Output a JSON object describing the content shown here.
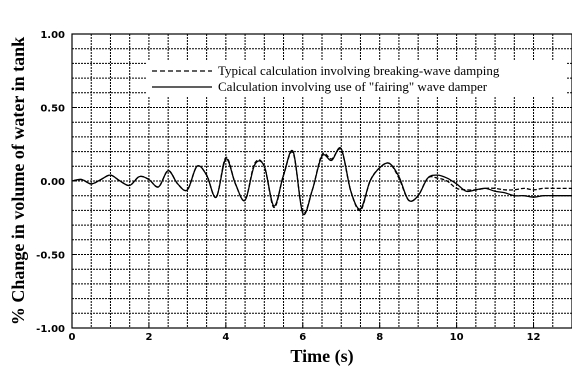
{
  "chart_data": {
    "type": "line",
    "title": "",
    "xlabel": "Time (s)",
    "ylabel": "% Change in volume of water in tank",
    "xlim": [
      0,
      13
    ],
    "ylim": [
      -1.0,
      1.0
    ],
    "x_ticks": [
      0,
      2,
      4,
      6,
      8,
      10,
      12
    ],
    "x_tick_labels": [
      "0",
      "2",
      "4",
      "6",
      "8",
      "10",
      "12"
    ],
    "y_ticks": [
      1.0,
      0.5,
      0.0,
      -0.5,
      -1.0
    ],
    "y_tick_labels": [
      "1.00",
      "0.50",
      "0.00",
      "-0.50",
      "-1.00"
    ],
    "grid": true,
    "legend_position": "top-right",
    "series": [
      {
        "name": "Typical calculation involving breaking-wave damping",
        "style": "dashed",
        "color": "#000000",
        "x": [
          0,
          0.25,
          0.5,
          0.75,
          1.0,
          1.25,
          1.5,
          1.75,
          2.0,
          2.25,
          2.5,
          2.75,
          3.0,
          3.25,
          3.5,
          3.75,
          4.0,
          4.25,
          4.5,
          4.75,
          5.0,
          5.25,
          5.5,
          5.75,
          6.0,
          6.25,
          6.5,
          6.75,
          7.0,
          7.25,
          7.5,
          7.75,
          8.0,
          8.25,
          8.5,
          8.75,
          9.0,
          9.25,
          9.5,
          9.75,
          10.0,
          10.25,
          10.5,
          10.75,
          11.0,
          11.25,
          11.5,
          11.75,
          12.0,
          12.25,
          12.5,
          12.75,
          13.0
        ],
        "y": [
          0.0,
          0.01,
          -0.02,
          0.01,
          0.04,
          0.0,
          -0.03,
          0.03,
          0.01,
          -0.04,
          0.07,
          -0.02,
          -0.06,
          0.1,
          0.04,
          -0.11,
          0.16,
          -0.02,
          -0.13,
          0.12,
          0.1,
          -0.18,
          0.04,
          0.19,
          -0.21,
          -0.06,
          0.18,
          0.15,
          0.21,
          -0.07,
          -0.2,
          0.0,
          0.09,
          0.12,
          0.02,
          -0.13,
          -0.1,
          0.02,
          0.02,
          0.0,
          -0.05,
          -0.06,
          -0.06,
          -0.05,
          -0.05,
          -0.06,
          -0.06,
          -0.05,
          -0.06,
          -0.05,
          -0.05,
          -0.05,
          -0.05
        ]
      },
      {
        "name": "Calculation involving use of \"fairing\" wave damper",
        "style": "solid",
        "color": "#000000",
        "x": [
          0,
          0.25,
          0.5,
          0.75,
          1.0,
          1.25,
          1.5,
          1.75,
          2.0,
          2.25,
          2.5,
          2.75,
          3.0,
          3.25,
          3.5,
          3.75,
          4.0,
          4.25,
          4.5,
          4.75,
          5.0,
          5.25,
          5.5,
          5.75,
          6.0,
          6.25,
          6.5,
          6.75,
          7.0,
          7.25,
          7.5,
          7.75,
          8.0,
          8.25,
          8.5,
          8.75,
          9.0,
          9.25,
          9.5,
          9.75,
          10.0,
          10.25,
          10.5,
          10.75,
          11.0,
          11.25,
          11.5,
          11.75,
          12.0,
          12.25,
          12.5,
          12.75,
          13.0
        ],
        "y": [
          0.0,
          0.01,
          -0.02,
          0.01,
          0.04,
          0.0,
          -0.03,
          0.03,
          0.01,
          -0.04,
          0.07,
          -0.02,
          -0.06,
          0.1,
          0.04,
          -0.11,
          0.15,
          -0.02,
          -0.13,
          0.11,
          0.1,
          -0.17,
          0.04,
          0.2,
          -0.22,
          -0.06,
          0.17,
          0.14,
          0.22,
          -0.07,
          -0.19,
          0.0,
          0.09,
          0.12,
          0.03,
          -0.13,
          -0.1,
          0.02,
          0.04,
          0.02,
          -0.02,
          -0.07,
          -0.06,
          -0.05,
          -0.07,
          -0.08,
          -0.1,
          -0.1,
          -0.11,
          -0.1,
          -0.1,
          -0.1,
          -0.1
        ]
      }
    ]
  }
}
